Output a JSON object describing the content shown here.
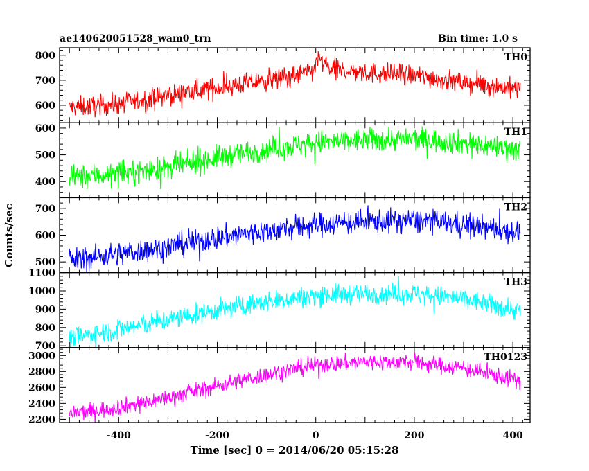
{
  "chart_data": {
    "type": "line",
    "title": "ae140620051528_wam0_trn",
    "bin_time": "Bin time: 1.0 s",
    "xlabel": "Time [sec] 0 = 2014/06/20 05:15:28",
    "ylabel": "Counts/sec",
    "xlim": [
      -520,
      435
    ],
    "xticks": [
      -400,
      -200,
      0,
      200,
      400
    ],
    "x_start": -500,
    "x_end": 415,
    "panels": [
      {
        "name": "TH0",
        "color": "#ff0000",
        "ylim": [
          530,
          830
        ],
        "yticks": [
          600,
          700,
          800
        ],
        "trend": [
          [
            -500,
            590
          ],
          [
            -400,
            605
          ],
          [
            -300,
            640
          ],
          [
            -200,
            670
          ],
          [
            -130,
            690
          ],
          [
            -60,
            710
          ],
          [
            -1,
            740
          ],
          [
            0,
            790
          ],
          [
            30,
            745
          ],
          [
            100,
            730
          ],
          [
            200,
            720
          ],
          [
            300,
            690
          ],
          [
            415,
            665
          ]
        ],
        "noise": 28
      },
      {
        "name": "TH1",
        "color": "#00ff00",
        "ylim": [
          340,
          620
        ],
        "yticks": [
          400,
          500,
          600
        ],
        "trend": [
          [
            -500,
            415
          ],
          [
            -400,
            430
          ],
          [
            -300,
            450
          ],
          [
            -200,
            490
          ],
          [
            -100,
            520
          ],
          [
            0,
            545
          ],
          [
            100,
            555
          ],
          [
            200,
            560
          ],
          [
            300,
            545
          ],
          [
            415,
            520
          ]
        ],
        "noise": 30
      },
      {
        "name": "TH2",
        "color": "#0000ff",
        "ylim": [
          460,
          740
        ],
        "yticks": [
          500,
          600,
          700
        ],
        "trend": [
          [
            -500,
            505
          ],
          [
            -400,
            530
          ],
          [
            -300,
            555
          ],
          [
            -200,
            590
          ],
          [
            -100,
            615
          ],
          [
            0,
            640
          ],
          [
            100,
            650
          ],
          [
            200,
            655
          ],
          [
            300,
            640
          ],
          [
            415,
            610
          ]
        ],
        "noise": 30
      },
      {
        "name": "TH3",
        "color": "#00ffff",
        "ylim": [
          690,
          1100
        ],
        "yticks": [
          700,
          800,
          900,
          1000,
          1100
        ],
        "trend": [
          [
            -500,
            740
          ],
          [
            -400,
            790
          ],
          [
            -300,
            840
          ],
          [
            -200,
            895
          ],
          [
            -100,
            940
          ],
          [
            0,
            975
          ],
          [
            100,
            985
          ],
          [
            200,
            985
          ],
          [
            300,
            955
          ],
          [
            415,
            890
          ]
        ],
        "noise": 38
      },
      {
        "name": "TH0123",
        "color": "#ff00ff",
        "ylim": [
          2160,
          3100
        ],
        "yticks": [
          2200,
          2400,
          2600,
          2800,
          3000
        ],
        "trend": [
          [
            -500,
            2270
          ],
          [
            -400,
            2350
          ],
          [
            -300,
            2470
          ],
          [
            -200,
            2620
          ],
          [
            -100,
            2760
          ],
          [
            0,
            2880
          ],
          [
            100,
            2920
          ],
          [
            200,
            2920
          ],
          [
            300,
            2840
          ],
          [
            415,
            2680
          ]
        ],
        "noise": 70
      }
    ]
  }
}
